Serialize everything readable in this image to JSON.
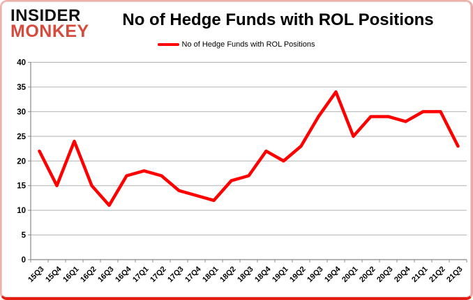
{
  "header": {
    "logo_line1": "INSIDER",
    "logo_line2": "MONKEY",
    "title": "No of Hedge Funds with ROL Positions"
  },
  "legend": {
    "label": "No of Hedge Funds with ROL Positions"
  },
  "chart_data": {
    "type": "line",
    "title": "No of Hedge Funds with ROL Positions",
    "series_name": "No of Hedge Funds with ROL Positions",
    "categories": [
      "15Q3",
      "15Q4",
      "16Q1",
      "16Q2",
      "16Q3",
      "16Q4",
      "17Q1",
      "17Q2",
      "17Q3",
      "17Q4",
      "18Q1",
      "18Q2",
      "18Q3",
      "18Q4",
      "19Q1",
      "19Q2",
      "19Q3",
      "19Q4",
      "20Q1",
      "20Q2",
      "20Q3",
      "20Q4",
      "21Q1",
      "21Q2",
      "21Q3"
    ],
    "values": [
      22,
      15,
      24,
      15,
      11,
      17,
      18,
      17,
      14,
      13,
      12,
      16,
      17,
      22,
      20,
      23,
      29,
      34,
      25,
      29,
      29,
      28,
      30,
      30,
      23
    ],
    "ylim": [
      0,
      40
    ],
    "ytick_step": 5,
    "xlabel": "",
    "ylabel": "",
    "grid": true,
    "legend_position": "top",
    "colors": {
      "line": "#ff0000",
      "grid": "#b3b3b3",
      "axis": "#898989",
      "text": "#000000",
      "logo_accent": "#d54b3d"
    }
  }
}
